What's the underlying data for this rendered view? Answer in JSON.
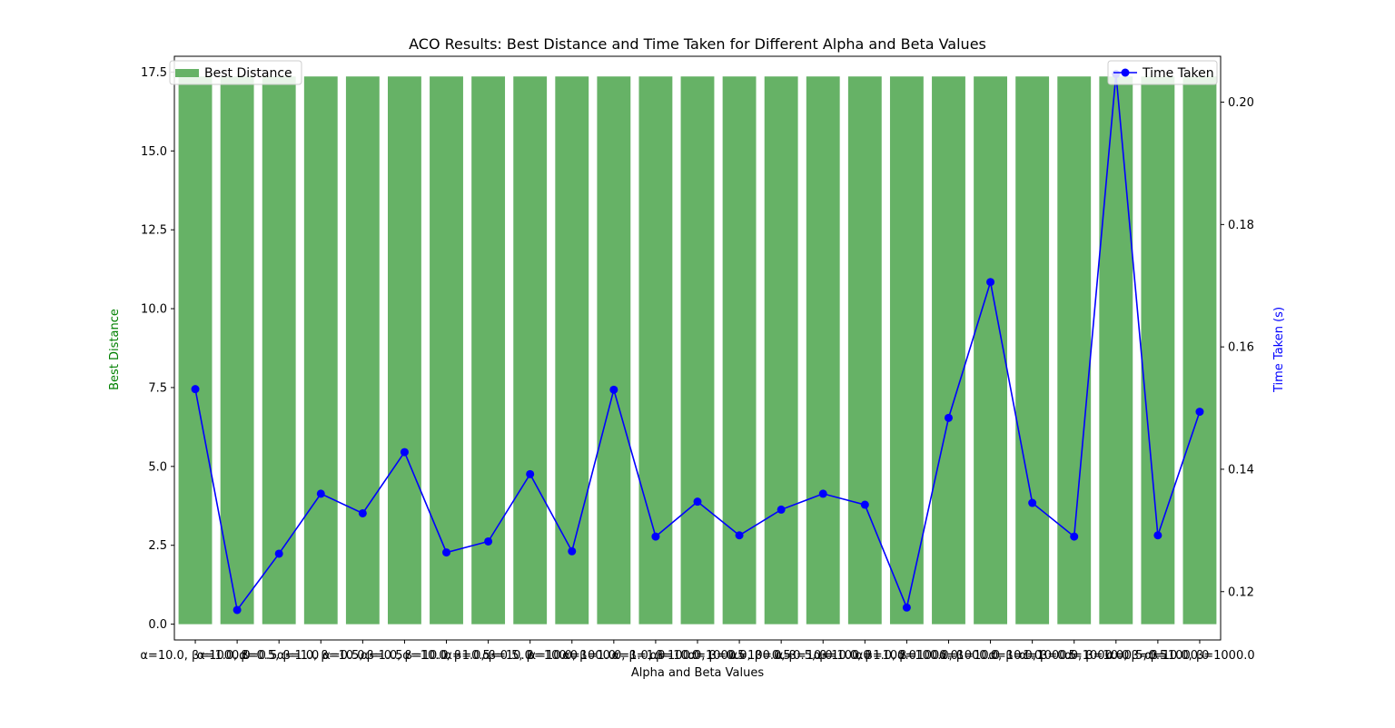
{
  "chart_data": {
    "type": "bar",
    "title": "ACO Results: Best Distance and Time Taken for Different Alpha and Beta Values",
    "xlabel": "Alpha and Beta Values",
    "categories": [
      "α=10.0, β=1000.0",
      "α=1.0, β=0.5",
      "α=0.5, β=1.0",
      "α=1.0, β=10.0",
      "α=0.5, β=0.5",
      "α=1.0, β=10.0",
      "α=10.0, β=0.5",
      "α=1.0, β=10.0",
      "α=0.5, β=100.0",
      "α=10.0, β=1.0",
      "α=1000.0, β=1.0",
      "α=1.0, β=10.0",
      "α=100.0, β=0.5",
      "α=1000.0, β=0.5",
      "α=100.0, β=10.0",
      "α=0.5, β=100.0",
      "α=10.0, β=100.0",
      "α=1.0, β=1000.0",
      "α=100.0, β=10.0",
      "α=1000.0, β=1.0",
      "α=10.0, β=0.5",
      "α=1000.0, β=10.0",
      "α=1000.0, β=0.5",
      "α=0.5, β=1000.0",
      "α=10.0, β=1000.0"
    ],
    "series": [
      {
        "name": "Best Distance",
        "axis": "left",
        "color": "#66b266",
        "values": [
          17.36,
          17.36,
          17.36,
          17.36,
          17.36,
          17.36,
          17.36,
          17.36,
          17.36,
          17.36,
          17.36,
          17.36,
          17.36,
          17.36,
          17.36,
          17.36,
          17.36,
          17.36,
          17.36,
          17.36,
          17.36,
          17.36,
          17.36,
          17.36,
          17.36
        ]
      },
      {
        "name": "Time Taken",
        "axis": "right",
        "color": "#0000ff",
        "values": [
          0.1531,
          0.117,
          0.1262,
          0.136,
          0.1328,
          0.1428,
          0.1264,
          0.1282,
          0.1392,
          0.1266,
          0.153,
          0.129,
          0.1347,
          0.1292,
          0.1334,
          0.136,
          0.1342,
          0.1174,
          0.1484,
          0.1706,
          0.1345,
          0.129,
          0.2046,
          0.1292,
          0.1494
        ]
      }
    ],
    "y_left": {
      "label": "Best Distance",
      "label_color": "#008000",
      "ylim": [
        -0.5,
        18.0
      ],
      "ticks": [
        0.0,
        2.5,
        5.0,
        7.5,
        10.0,
        12.5,
        15.0,
        17.5
      ],
      "tick_labels": [
        "0.0",
        "2.5",
        "5.0",
        "7.5",
        "10.0",
        "12.5",
        "15.0",
        "17.5"
      ]
    },
    "y_right": {
      "label": "Time Taken (s)",
      "label_color": "#0000ff",
      "ylim": [
        0.1121,
        0.2075
      ],
      "ticks": [
        0.12,
        0.14,
        0.16,
        0.18,
        0.2
      ],
      "tick_labels": [
        "0.12",
        "0.14",
        "0.16",
        "0.18",
        "0.20"
      ]
    },
    "legends": [
      {
        "series": "Best Distance",
        "placement": "top-left"
      },
      {
        "series": "Time Taken",
        "placement": "top-right"
      }
    ],
    "grid": false
  }
}
